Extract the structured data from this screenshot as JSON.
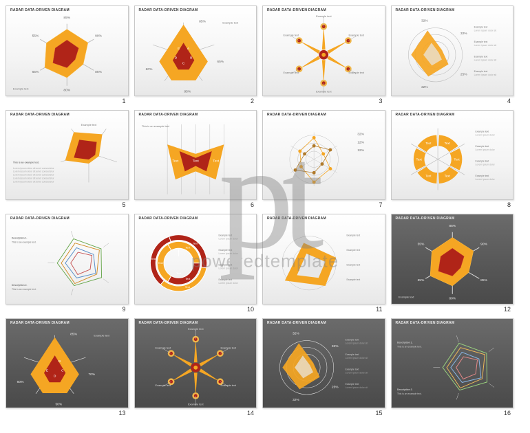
{
  "watermark": {
    "logo": "pt",
    "text": "poweredtemplate"
  },
  "common": {
    "title": "RADAR DATA-DRIVEN DIAGRAM",
    "example_text": "Example text",
    "description_text": "This is an example text.",
    "text_label": "Text",
    "colors": {
      "yellow": "#f5a623",
      "yellow_light": "#fbc14a",
      "red": "#b02418",
      "red_light": "#c93a2e",
      "grey_axis": "#bdbdbd",
      "grey_axis_dark": "#dcdcdc",
      "grid_ring": "#cfcfcf",
      "bg_light_top": "#ffffff",
      "bg_light_bot": "#e8e8e8",
      "bg_dark_top": "#6b6b6b",
      "bg_dark_bot": "#4a4a4a",
      "line_a": "#6aa84f",
      "line_b": "#d28f2a",
      "line_c": "#5a8fc7",
      "line_d": "#c75a5a",
      "line_e": "#8f8f8f"
    }
  },
  "slides": [
    {
      "n": 1,
      "bg": "light",
      "type": "radar3d",
      "axes": 6,
      "outer": [
        0.95,
        0.9,
        0.7,
        0.85,
        0.95,
        0.88
      ],
      "inner": [
        0.55,
        0.5,
        0.35,
        0.48,
        0.6,
        0.5
      ],
      "pct_labels": [
        "85%",
        "90%",
        "85%",
        "80%",
        "65%",
        "55%"
      ],
      "label": "Example text"
    },
    {
      "n": 2,
      "bg": "light",
      "type": "teardrop",
      "outer_pts": [
        [
          0,
          -45
        ],
        [
          36,
          10
        ],
        [
          18,
          38
        ],
        [
          -18,
          38
        ],
        [
          -36,
          10
        ]
      ],
      "inner_pts": [
        [
          0,
          -18
        ],
        [
          16,
          8
        ],
        [
          8,
          22
        ],
        [
          -8,
          22
        ],
        [
          -16,
          8
        ]
      ],
      "pct_labels": [
        "85%",
        "65%",
        "95%",
        "80%"
      ],
      "letters": [
        "A",
        "B",
        "C",
        "D",
        "E"
      ],
      "label": "Example text"
    },
    {
      "n": 3,
      "bg": "light",
      "type": "star",
      "arms": 6,
      "arm_len": 42,
      "arm_width": 7,
      "dot_inner": "#b02418",
      "dot_outer": "#efb64a",
      "label": "Example text"
    },
    {
      "n": 4,
      "bg": "light",
      "type": "radar_rings",
      "rings": [
        0.25,
        0.5,
        0.75,
        1.0
      ],
      "poly": [
        0.95,
        0.3,
        0.6,
        0.85,
        0.9
      ],
      "pct_labels": [
        "32%",
        "32%",
        "25%",
        "32%"
      ],
      "desc_right": true,
      "label": "Example text"
    },
    {
      "n": 5,
      "bg": "light",
      "type": "radar_corner",
      "outer": [
        0.95,
        0.85,
        0.4,
        0.4,
        0.92
      ],
      "inner": [
        0.6,
        0.5,
        0.25,
        0.25,
        0.58
      ],
      "desc_block": true,
      "label": "Example text"
    },
    {
      "n": 6,
      "bg": "light",
      "type": "shield",
      "outer_pts": [
        [
          -42,
          -22
        ],
        [
          0,
          -8
        ],
        [
          42,
          -22
        ],
        [
          30,
          30
        ],
        [
          0,
          18
        ],
        [
          -30,
          30
        ]
      ],
      "inner_pts": [
        [
          -24,
          -12
        ],
        [
          0,
          -2
        ],
        [
          24,
          -12
        ],
        [
          16,
          18
        ],
        [
          0,
          10
        ],
        [
          -16,
          18
        ]
      ],
      "label": "Text"
    },
    {
      "n": 7,
      "bg": "light",
      "type": "radar_dots",
      "rings": [
        0.3,
        0.6,
        0.9
      ],
      "pts_a": [
        0.8,
        0.4,
        0.7,
        0.85,
        0.55,
        0.6
      ],
      "pts_b": [
        0.5,
        0.7,
        0.35,
        0.5,
        0.8,
        0.4
      ],
      "pct_labels": [
        "32%",
        "12%",
        "12%"
      ],
      "label": "Example text"
    },
    {
      "n": 8,
      "bg": "light",
      "type": "donut6",
      "segments": 6,
      "r_outer": 36,
      "r_inner": 20,
      "color": "#f5a623",
      "label": "Text",
      "desc_right": true
    },
    {
      "n": 9,
      "bg": "light",
      "type": "pentagon_lines",
      "polys": [
        {
          "r": [
            0.95,
            0.9,
            0.92,
            0.88,
            0.9
          ],
          "c": "#6aa84f"
        },
        {
          "r": [
            0.78,
            0.82,
            0.7,
            0.8,
            0.75
          ],
          "c": "#d28f2a"
        },
        {
          "r": [
            0.6,
            0.55,
            0.65,
            0.58,
            0.6
          ],
          "c": "#5a8fc7"
        },
        {
          "r": [
            0.42,
            0.48,
            0.4,
            0.45,
            0.4
          ],
          "c": "#c75a5a"
        }
      ],
      "desc_left": true,
      "label": "Example text"
    },
    {
      "n": 10,
      "bg": "light",
      "type": "donut_nested",
      "rings": [
        {
          "r0": 10,
          "r1": 20,
          "segs": [
            {
              "a0": 0,
              "a1": 360,
              "c": "#b02418"
            }
          ]
        },
        {
          "r0": 22,
          "r1": 32,
          "segs": [
            {
              "a0": -30,
              "a1": 90,
              "c": "#f5a623"
            },
            {
              "a0": 90,
              "a1": 210,
              "c": "#b02418"
            },
            {
              "a0": 210,
              "a1": 330,
              "c": "#f5a623"
            }
          ]
        },
        {
          "r0": 34,
          "r1": 42,
          "segs": [
            {
              "a0": -20,
              "a1": 100,
              "c": "#b02418"
            },
            {
              "a0": 100,
              "a1": 220,
              "c": "#f5a623"
            },
            {
              "a0": 220,
              "a1": 340,
              "c": "#b02418"
            }
          ]
        }
      ],
      "label": "Text",
      "desc_right": true
    },
    {
      "n": 11,
      "bg": "light",
      "type": "fold",
      "outer_pts": [
        [
          -36,
          26
        ],
        [
          -8,
          -30
        ],
        [
          40,
          -8
        ],
        [
          24,
          34
        ]
      ],
      "inner_pts": [
        [
          -18,
          18
        ],
        [
          -4,
          -14
        ],
        [
          24,
          -2
        ],
        [
          14,
          22
        ]
      ],
      "label": "Example text",
      "desc_right": true
    },
    {
      "n": 12,
      "bg": "dark",
      "type": "radar3d",
      "axes": 6,
      "outer": [
        0.95,
        0.9,
        0.7,
        0.85,
        0.95,
        0.88
      ],
      "inner": [
        0.55,
        0.5,
        0.35,
        0.48,
        0.6,
        0.5
      ],
      "pct_labels": [
        "85%",
        "90%",
        "85%",
        "80%",
        "65%",
        "55%"
      ],
      "label": "Example text"
    },
    {
      "n": 13,
      "bg": "dark",
      "type": "teardrop",
      "outer_pts": [
        [
          0,
          -45
        ],
        [
          36,
          10
        ],
        [
          18,
          38
        ],
        [
          -18,
          38
        ],
        [
          -36,
          10
        ]
      ],
      "inner_pts": [
        [
          0,
          -18
        ],
        [
          16,
          8
        ],
        [
          8,
          22
        ],
        [
          -8,
          22
        ],
        [
          -16,
          8
        ]
      ],
      "pct_labels": [
        "85%",
        "70%",
        "50%",
        "60%"
      ],
      "letters": [
        "B",
        "C",
        "D",
        "E"
      ],
      "label": "Example text"
    },
    {
      "n": 14,
      "bg": "dark",
      "type": "star",
      "arms": 6,
      "arm_len": 42,
      "arm_width": 7,
      "dot_inner": "#b02418",
      "dot_outer": "#efb64a",
      "label": "Example text"
    },
    {
      "n": 15,
      "bg": "dark",
      "type": "radar_rings",
      "rings": [
        0.25,
        0.5,
        0.75,
        1.0
      ],
      "poly": [
        0.95,
        0.3,
        0.6,
        0.85,
        0.9
      ],
      "pct_labels": [
        "32%",
        "32%",
        "25%",
        "32%"
      ],
      "desc_right": true,
      "label": "Example text"
    },
    {
      "n": 16,
      "bg": "dark",
      "type": "pentagon_lines",
      "polys": [
        {
          "r": [
            0.95,
            0.9,
            0.92,
            0.88,
            0.9
          ],
          "c": "#9bd47f"
        },
        {
          "r": [
            0.78,
            0.82,
            0.7,
            0.8,
            0.75
          ],
          "c": "#f0b95a"
        },
        {
          "r": [
            0.6,
            0.55,
            0.65,
            0.58,
            0.6
          ],
          "c": "#8ab8e8"
        },
        {
          "r": [
            0.42,
            0.48,
            0.4,
            0.45,
            0.4
          ],
          "c": "#e88a8a"
        }
      ],
      "desc_left": true,
      "label": "Example text"
    }
  ]
}
